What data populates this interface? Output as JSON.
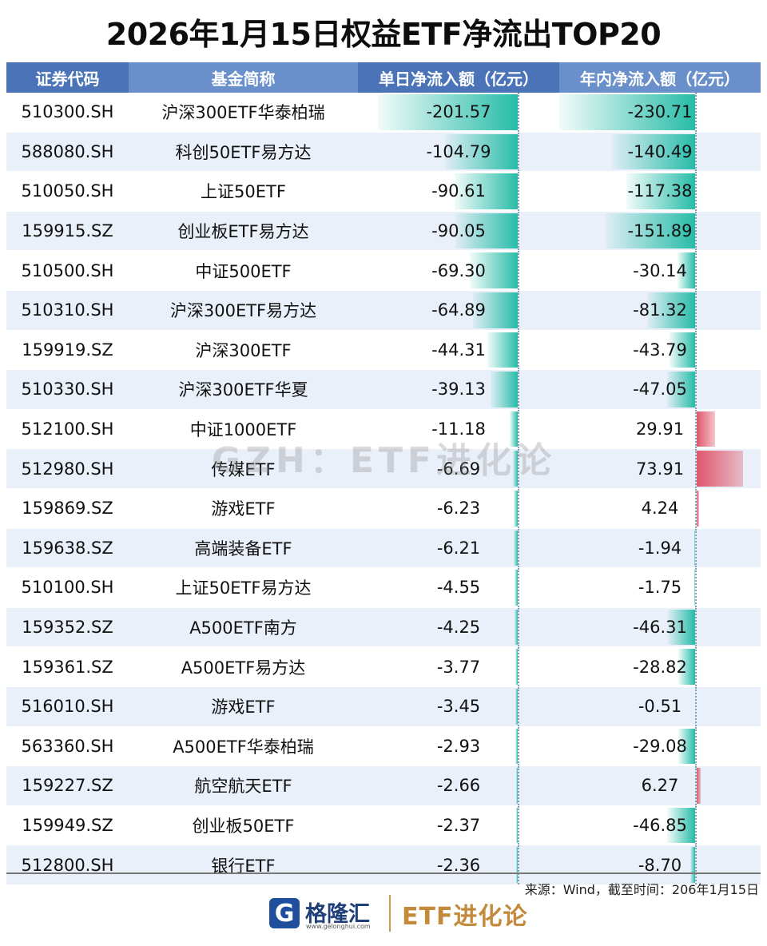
{
  "title": "2026年1月15日权益ETF净流出TOP20",
  "watermark": "GZH：ETF进化论",
  "headers": [
    "证券代码",
    "基金简称",
    "单日净流入额（亿元）",
    "年内净流入额（亿元）"
  ],
  "source": "来源：Wind，截至时间：206年1月15日",
  "footer": {
    "logo_icon": "G",
    "brand": "格隆汇",
    "url": "www.gelonghui.com",
    "brand2": "ETF进化论"
  },
  "colors": {
    "header": "#5a82c2",
    "negative_bar": "#27bca8",
    "positive_bar": "#e0566b",
    "row_alt": "#eaf0f9"
  },
  "chart_data": {
    "type": "table",
    "title": "2026年1月15日权益ETF净流出TOP20",
    "columns": [
      "证券代码",
      "基金简称",
      "单日净流入额（亿元）",
      "年内净流入额（亿元）"
    ],
    "rows": [
      {
        "code": "510300.SH",
        "name": "沪深300ETF华泰柏瑞",
        "daily": "-201.57",
        "ytd": "-230.71"
      },
      {
        "code": "588080.SH",
        "name": "科创50ETF易方达",
        "daily": "-104.79",
        "ytd": "-140.49"
      },
      {
        "code": "510050.SH",
        "name": "上证50ETF",
        "daily": "-90.61",
        "ytd": "-117.38"
      },
      {
        "code": "159915.SZ",
        "name": "创业板ETF易方达",
        "daily": "-90.05",
        "ytd": "-151.89"
      },
      {
        "code": "510500.SH",
        "name": "中证500ETF",
        "daily": "-69.30",
        "ytd": "-30.14"
      },
      {
        "code": "510310.SH",
        "name": "沪深300ETF易方达",
        "daily": "-64.89",
        "ytd": "-81.32"
      },
      {
        "code": "159919.SZ",
        "name": "沪深300ETF",
        "daily": "-44.31",
        "ytd": "-43.79"
      },
      {
        "code": "510330.SH",
        "name": "沪深300ETF华夏",
        "daily": "-39.13",
        "ytd": "-47.05"
      },
      {
        "code": "512100.SH",
        "name": "中证1000ETF",
        "daily": "-11.18",
        "ytd": "29.91"
      },
      {
        "code": "512980.SH",
        "name": "传媒ETF",
        "daily": "-6.69",
        "ytd": "73.91"
      },
      {
        "code": "159869.SZ",
        "name": "游戏ETF",
        "daily": "-6.23",
        "ytd": "4.24"
      },
      {
        "code": "159638.SZ",
        "name": "高端装备ETF",
        "daily": "-6.21",
        "ytd": "-1.94"
      },
      {
        "code": "510100.SH",
        "name": "上证50ETF易方达",
        "daily": "-4.55",
        "ytd": "-1.75"
      },
      {
        "code": "159352.SZ",
        "name": "A500ETF南方",
        "daily": "-4.25",
        "ytd": "-46.31"
      },
      {
        "code": "159361.SZ",
        "name": "A500ETF易方达",
        "daily": "-3.77",
        "ytd": "-28.82"
      },
      {
        "code": "516010.SH",
        "name": "游戏ETF",
        "daily": "-3.45",
        "ytd": "-0.51"
      },
      {
        "code": "563360.SH",
        "name": "A500ETF华泰柏瑞",
        "daily": "-2.93",
        "ytd": "-29.08"
      },
      {
        "code": "159227.SZ",
        "name": "航空航天ETF",
        "daily": "-2.66",
        "ytd": "6.27"
      },
      {
        "code": "159949.SZ",
        "name": "创业板50ETF",
        "daily": "-2.37",
        "ytd": "-46.85"
      },
      {
        "code": "512800.SH",
        "name": "银行ETF",
        "daily": "-2.36",
        "ytd": "-8.70"
      }
    ]
  }
}
